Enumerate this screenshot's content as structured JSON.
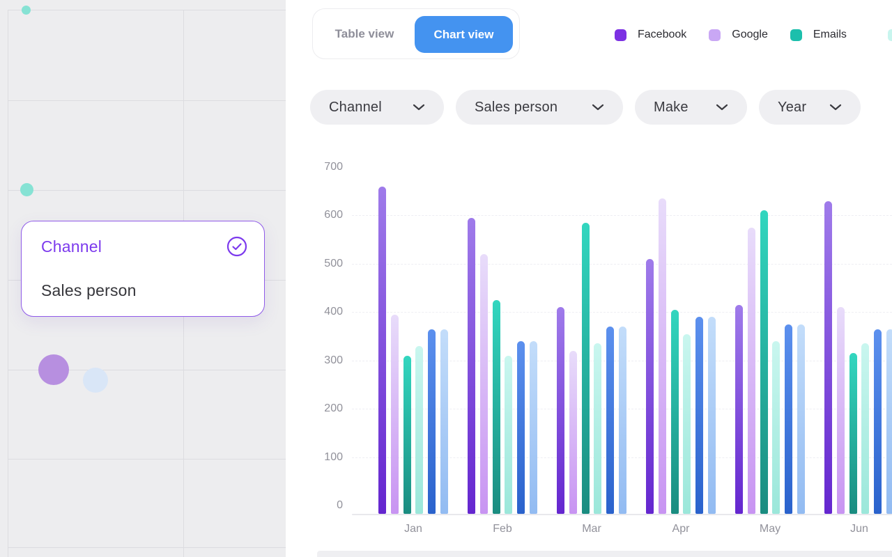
{
  "colors": {
    "accent_blue": "#4493F0",
    "accent_purple": "#7C3AED",
    "panel_gray": "#EDEDEF"
  },
  "toolbar": {
    "table_view_label": "Table view",
    "chart_view_label": "Chart view",
    "active_view": "Chart view"
  },
  "legend": {
    "items": [
      {
        "label": "Facebook",
        "color": "#7C31E3"
      },
      {
        "label": "Google",
        "color": "#C9A7F4"
      },
      {
        "label": "Emails",
        "color": "#1CBFAC"
      }
    ],
    "partial_item_color": "#C8F5EE"
  },
  "filters": {
    "chips": [
      {
        "label": "Channel"
      },
      {
        "label": "Sales person"
      },
      {
        "label": "Make"
      },
      {
        "label": "Year"
      }
    ]
  },
  "left_panel": {
    "dropdown": {
      "options": [
        {
          "label": "Channel",
          "selected": true
        },
        {
          "label": "Sales person",
          "selected": false
        }
      ]
    }
  },
  "chart_data": {
    "type": "bar",
    "categories": [
      "Jan",
      "Feb",
      "Mar",
      "Apr",
      "May",
      "Jun"
    ],
    "series": [
      {
        "name": "Facebook",
        "values": [
          660,
          595,
          410,
          510,
          415,
          630
        ],
        "color_top": "#9F7BEA",
        "color_bottom": "#6426CF"
      },
      {
        "name": "Google",
        "values": [
          395,
          520,
          320,
          635,
          575,
          410
        ],
        "color_top": "#E8DCFA",
        "color_bottom": "#C894F2"
      },
      {
        "name": "Emails",
        "values": [
          310,
          425,
          585,
          405,
          610,
          315
        ],
        "color_top": "#32D6BF",
        "color_bottom": "#1A8C80"
      },
      {
        "name": "",
        "values": [
          330,
          310,
          335,
          355,
          340,
          335
        ],
        "color_top": "#C9F6EF",
        "color_bottom": "#9BE7DA"
      },
      {
        "name": "",
        "values": [
          365,
          340,
          370,
          390,
          375,
          365
        ],
        "color_top": "#5C90EE",
        "color_bottom": "#2A62CC"
      },
      {
        "name": "",
        "values": [
          365,
          340,
          370,
          390,
          375,
          365
        ],
        "color_top": "#C3DDFA",
        "color_bottom": "#92BBF2"
      }
    ],
    "ylim": [
      0,
      700
    ],
    "yticks": [
      0,
      100,
      200,
      300,
      400,
      500,
      600,
      700
    ],
    "grid": "faint-dashed-horizontal",
    "legend_position": "top-right"
  }
}
